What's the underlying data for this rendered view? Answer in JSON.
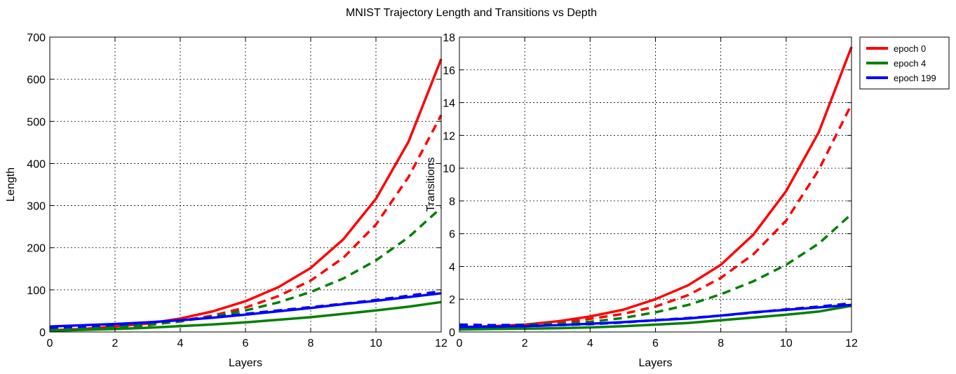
{
  "figure": {
    "title": "MNIST Trajectory Length and Transitions vs Depth"
  },
  "legend": {
    "placement": "outside-right",
    "entries": [
      {
        "label": "epoch 0",
        "color": "#ff0000"
      },
      {
        "label": "epoch 4",
        "color": "#008000"
      },
      {
        "label": "epoch 199",
        "color": "#0000ff"
      }
    ]
  },
  "chart_data": [
    {
      "type": "line",
      "xlabel": "Layers",
      "ylabel": "Length",
      "xlim": [
        0,
        12
      ],
      "ylim": [
        0,
        700
      ],
      "xticks": [
        "0",
        "2",
        "4",
        "6",
        "8",
        "10",
        "12"
      ],
      "yticks": [
        "0",
        "100",
        "200",
        "300",
        "400",
        "500",
        "600",
        "700"
      ],
      "grid": true,
      "x": [
        0,
        1,
        2,
        3,
        4,
        5,
        6,
        7,
        8,
        9,
        10,
        11,
        12
      ],
      "series": [
        {
          "name": "epoch 0",
          "color": "#ff0000",
          "style": "solid",
          "values": [
            4,
            7,
            13,
            20,
            32,
            49,
            73,
            106,
            152,
            220,
            316,
            452,
            648
          ]
        },
        {
          "name": "epoch 0",
          "color": "#ff0000",
          "style": "dashed",
          "values": [
            4,
            6,
            10,
            16,
            26,
            39,
            58,
            85,
            122,
            176,
            255,
            368,
            515
          ]
        },
        {
          "name": "epoch 4",
          "color": "#008000",
          "style": "solid",
          "values": [
            3,
            5,
            7,
            10,
            14,
            18,
            23,
            29,
            35,
            43,
            51,
            60,
            71
          ]
        },
        {
          "name": "epoch 4",
          "color": "#008000",
          "style": "dashed",
          "values": [
            4,
            7,
            11,
            17,
            25,
            37,
            51,
            70,
            95,
            127,
            170,
            225,
            295
          ]
        },
        {
          "name": "epoch 199",
          "color": "#0000ff",
          "style": "solid",
          "values": [
            13,
            16,
            19,
            23,
            28,
            34,
            41,
            49,
            57,
            66,
            74,
            83,
            92
          ]
        },
        {
          "name": "epoch 199",
          "color": "#0000ff",
          "style": "dashed",
          "values": [
            10,
            13,
            17,
            22,
            28,
            35,
            43,
            51,
            59,
            67,
            76,
            86,
            97
          ]
        }
      ]
    },
    {
      "type": "line",
      "xlabel": "Layers",
      "ylabel": "Transitions",
      "xlim": [
        0,
        12
      ],
      "ylim": [
        0,
        18
      ],
      "xticks": [
        "0",
        "2",
        "4",
        "6",
        "8",
        "10",
        "12"
      ],
      "yticks": [
        "0",
        "2",
        "4",
        "6",
        "8",
        "10",
        "12",
        "14",
        "16",
        "18"
      ],
      "grid": true,
      "x": [
        0,
        1,
        2,
        3,
        4,
        5,
        6,
        7,
        8,
        9,
        10,
        11,
        12
      ],
      "series": [
        {
          "name": "epoch 0",
          "color": "#ff0000",
          "style": "solid",
          "values": [
            0.3,
            0.35,
            0.45,
            0.65,
            0.95,
            1.35,
            2.0,
            2.85,
            4.1,
            5.95,
            8.6,
            12.2,
            17.4
          ]
        },
        {
          "name": "epoch 0",
          "color": "#ff0000",
          "style": "dashed",
          "values": [
            0.3,
            0.35,
            0.4,
            0.55,
            0.8,
            1.1,
            1.55,
            2.25,
            3.3,
            4.75,
            6.8,
            9.9,
            13.9
          ]
        },
        {
          "name": "epoch 4",
          "color": "#008000",
          "style": "solid",
          "values": [
            0.15,
            0.18,
            0.2,
            0.23,
            0.28,
            0.35,
            0.45,
            0.55,
            0.72,
            0.88,
            1.05,
            1.25,
            1.6
          ]
        },
        {
          "name": "epoch 4",
          "color": "#008000",
          "style": "dashed",
          "values": [
            0.4,
            0.42,
            0.45,
            0.5,
            0.62,
            0.85,
            1.2,
            1.65,
            2.3,
            3.1,
            4.1,
            5.4,
            7.2
          ]
        },
        {
          "name": "epoch 199",
          "color": "#0000ff",
          "style": "solid",
          "values": [
            0.3,
            0.32,
            0.35,
            0.42,
            0.5,
            0.6,
            0.72,
            0.82,
            1.0,
            1.2,
            1.35,
            1.5,
            1.65
          ]
        },
        {
          "name": "epoch 199",
          "color": "#0000ff",
          "style": "dashed",
          "values": [
            0.45,
            0.42,
            0.4,
            0.42,
            0.48,
            0.58,
            0.72,
            0.85,
            1.0,
            1.18,
            1.38,
            1.55,
            1.75
          ]
        }
      ]
    }
  ]
}
